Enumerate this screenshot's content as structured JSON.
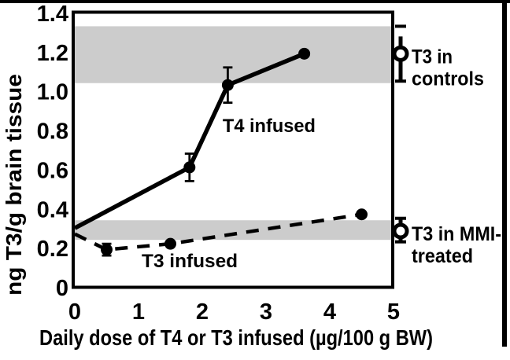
{
  "figure": {
    "background": "#ffffff",
    "ink_color": "#000000",
    "band_color": "#cccccc"
  },
  "chart_data": {
    "type": "line",
    "title": "",
    "xlabel": "Daily dose of T4 or T3 infused (µg/100 g BW)",
    "ylabel": "ng T3/g brain tissue",
    "xlim": [
      0,
      5
    ],
    "ylim": [
      0,
      1.4
    ],
    "x_ticks": [
      "0",
      "1",
      "2",
      "3",
      "4",
      "5"
    ],
    "y_ticks": [
      "0",
      "0.2",
      "0.4",
      "0.6",
      "0.8",
      "1.0",
      "1.2",
      "1.4"
    ],
    "grid": false,
    "bands": [
      {
        "name": "controls-range",
        "from": 1.04,
        "to": 1.33,
        "color": "#cccccc"
      },
      {
        "name": "mmi-range",
        "from": 0.24,
        "to": 0.34,
        "color": "#cccccc"
      }
    ],
    "series": [
      {
        "name": "T4 infused",
        "line_style": "solid",
        "marker": "filled-circle",
        "points": [
          {
            "x": 0,
            "y": 0.3,
            "marker": false
          },
          {
            "x": 1.8,
            "y": 0.61,
            "err": 0.07
          },
          {
            "x": 2.4,
            "y": 1.03,
            "err": 0.09
          },
          {
            "x": 3.6,
            "y": 1.19
          }
        ],
        "label": {
          "text": "T4 infused",
          "x": 2.32,
          "y": 0.79
        }
      },
      {
        "name": "T3 infused",
        "line_style": "dashed",
        "marker": "filled-circle",
        "points": [
          {
            "x": 0,
            "y": 0.27,
            "marker": false
          },
          {
            "x": 0.5,
            "y": 0.19,
            "err": 0.03
          },
          {
            "x": 1.5,
            "y": 0.22
          },
          {
            "x": 4.5,
            "y": 0.37
          }
        ],
        "label": {
          "text": "T3 infused",
          "x": 1.05,
          "y": 0.1
        }
      }
    ],
    "reference_markers": [
      {
        "name": "t3-controls",
        "label_lines": [
          "T3 in",
          "controls"
        ],
        "y": 1.19,
        "err_low": 1.05,
        "err_high": 1.33,
        "marker": "open-circle",
        "cap_gap_top": true
      },
      {
        "name": "t3-mmi-treated",
        "label_lines": [
          "T3 in MMI-",
          "treated"
        ],
        "y": 0.285,
        "err_low": 0.23,
        "err_high": 0.35,
        "marker": "open-circle",
        "cap_gap_top": false
      }
    ]
  }
}
